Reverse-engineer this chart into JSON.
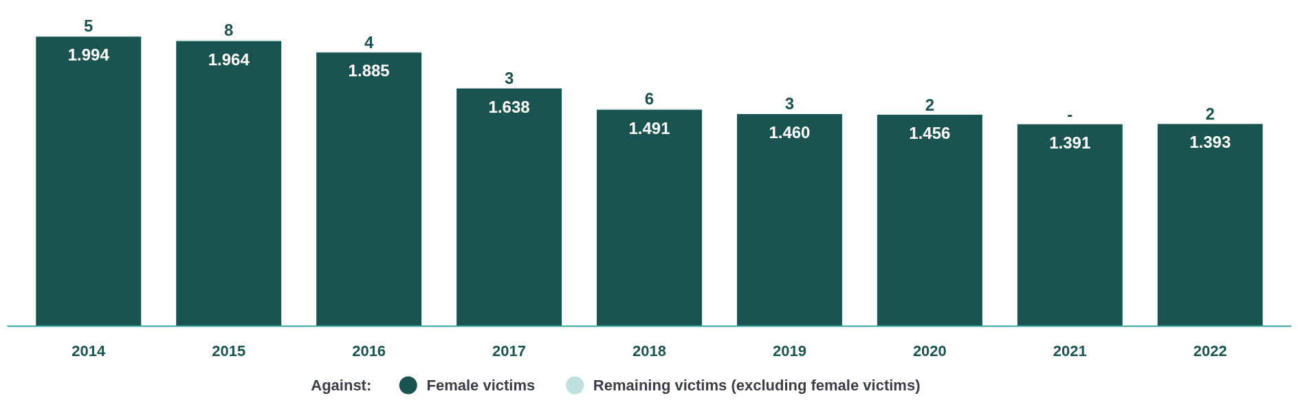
{
  "chart_data": {
    "type": "bar",
    "stacked": true,
    "legend_title": "Against:",
    "legend": "bottom",
    "grid": false,
    "categories": [
      "2014",
      "2015",
      "2016",
      "2017",
      "2018",
      "2019",
      "2020",
      "2021",
      "2022"
    ],
    "series": [
      {
        "name": "Female victims",
        "color": "#1a534f",
        "values": [
          1994,
          1964,
          1885,
          1638,
          1491,
          1460,
          1456,
          1391,
          1393
        ],
        "value_labels": [
          "1.994",
          "1.964",
          "1.885",
          "1.638",
          "1.491",
          "1.460",
          "1.456",
          "1.391",
          "1.393"
        ]
      },
      {
        "name": "Remaining victims (excluding female victims)",
        "color": "#bfe0df",
        "values": [
          5,
          8,
          4,
          3,
          6,
          3,
          2,
          null,
          2
        ],
        "value_labels": [
          "5",
          "8",
          "4",
          "3",
          "6",
          "3",
          "2",
          "-",
          "2"
        ]
      }
    ]
  }
}
